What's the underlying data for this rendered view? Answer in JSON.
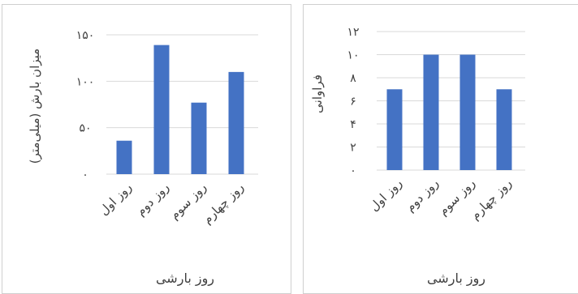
{
  "chart_data": [
    {
      "type": "bar",
      "categories": [
        "روز اول",
        "روز دوم",
        "روز سوم",
        "روز چهارم"
      ],
      "values": [
        36,
        139,
        77,
        110
      ],
      "y_ticks": [
        "۰",
        "۵۰",
        "۱۰۰",
        "۱۵۰"
      ],
      "y_tick_values": [
        0,
        50,
        100,
        150
      ],
      "ylim": [
        0,
        150
      ],
      "xlabel": "روز بارشی",
      "ylabel": "میزان بارش (میلی‌متر)",
      "grid": true,
      "bar_color": "#4472c4"
    },
    {
      "type": "bar",
      "categories": [
        "روز اول",
        "روز دوم",
        "روز سوم",
        "روز چهارم"
      ],
      "values": [
        7,
        10,
        10,
        7
      ],
      "y_ticks": [
        "۰",
        "۲",
        "۴",
        "۶",
        "۸",
        "۱۰",
        "۱۲"
      ],
      "y_tick_values": [
        0,
        2,
        4,
        6,
        8,
        10,
        12
      ],
      "ylim": [
        0,
        12
      ],
      "xlabel": "روز بارشی",
      "ylabel": "فراوانی",
      "grid": true,
      "bar_color": "#4472c4"
    }
  ]
}
